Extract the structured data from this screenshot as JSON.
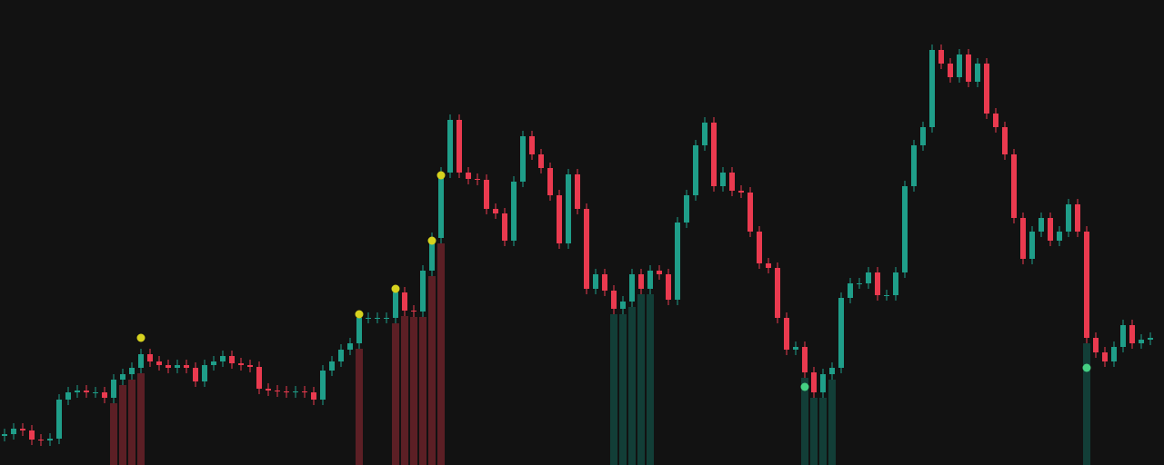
{
  "chart_data": {
    "type": "candlestick",
    "background": "#121212",
    "up_color": "#1f9e89",
    "down_color": "#ea3a4f",
    "ylim": [
      0,
      512
    ],
    "open": [
      32,
      34,
      40,
      38,
      28,
      27,
      29,
      72,
      80,
      82,
      80,
      80,
      74,
      94,
      100,
      107,
      122,
      114,
      110,
      107,
      110,
      107,
      92,
      110,
      114,
      120,
      112,
      110,
      108,
      84,
      82,
      81,
      80,
      81,
      80,
      72,
      104,
      114,
      127,
      134,
      162,
      162,
      162,
      162,
      190,
      170,
      169,
      214,
      250,
      322,
      380,
      322,
      315,
      314,
      282,
      277,
      247,
      312,
      362,
      342,
      327,
      297,
      244,
      320,
      282,
      194,
      210,
      192,
      172,
      180,
      210,
      194,
      214,
      210,
      182,
      267,
      297,
      352,
      377,
      307,
      322,
      302,
      300,
      257,
      222,
      217,
      162,
      127,
      130,
      102,
      80,
      100,
      107,
      184,
      200,
      200,
      212,
      187,
      187,
      212,
      307,
      352,
      372,
      457,
      442,
      427,
      452,
      422,
      442,
      387,
      372,
      342,
      272,
      227,
      257,
      272,
      247,
      257,
      287,
      257,
      140,
      124,
      114,
      130,
      154,
      134,
      138
    ],
    "high": [
      40,
      46,
      46,
      44,
      34,
      35,
      78,
      86,
      88,
      88,
      86,
      86,
      100,
      106,
      113,
      128,
      128,
      120,
      116,
      116,
      116,
      113,
      116,
      120,
      126,
      126,
      118,
      116,
      114,
      90,
      88,
      87,
      87,
      87,
      86,
      110,
      120,
      133,
      140,
      168,
      168,
      168,
      168,
      196,
      196,
      176,
      220,
      256,
      328,
      386,
      386,
      328,
      321,
      320,
      288,
      283,
      318,
      368,
      368,
      348,
      333,
      303,
      326,
      326,
      288,
      216,
      216,
      198,
      186,
      216,
      216,
      220,
      220,
      216,
      273,
      303,
      358,
      383,
      383,
      328,
      328,
      308,
      306,
      263,
      228,
      223,
      168,
      136,
      136,
      108,
      106,
      113,
      190,
      206,
      206,
      218,
      218,
      193,
      218,
      313,
      358,
      378,
      463,
      463,
      448,
      458,
      458,
      448,
      448,
      393,
      378,
      348,
      278,
      263,
      278,
      278,
      263,
      293,
      293,
      263,
      146,
      130,
      136,
      160,
      160,
      144,
      146
    ],
    "low": [
      26,
      28,
      32,
      22,
      21,
      21,
      23,
      66,
      74,
      74,
      74,
      68,
      68,
      88,
      94,
      101,
      108,
      104,
      101,
      101,
      101,
      86,
      86,
      104,
      108,
      106,
      104,
      102,
      78,
      76,
      75,
      74,
      74,
      74,
      66,
      66,
      98,
      108,
      121,
      128,
      156,
      156,
      156,
      156,
      164,
      163,
      163,
      208,
      244,
      316,
      316,
      309,
      308,
      276,
      271,
      241,
      241,
      306,
      336,
      321,
      291,
      238,
      238,
      276,
      188,
      188,
      186,
      166,
      166,
      174,
      188,
      188,
      204,
      176,
      176,
      261,
      291,
      346,
      301,
      301,
      296,
      294,
      251,
      216,
      211,
      156,
      121,
      121,
      96,
      74,
      74,
      94,
      101,
      178,
      194,
      194,
      181,
      181,
      181,
      206,
      301,
      346,
      366,
      436,
      421,
      421,
      416,
      416,
      381,
      366,
      336,
      266,
      221,
      221,
      251,
      241,
      241,
      251,
      251,
      134,
      118,
      108,
      108,
      124,
      128,
      128,
      132
    ],
    "close": [
      34,
      40,
      38,
      28,
      27,
      29,
      72,
      80,
      82,
      80,
      80,
      74,
      94,
      100,
      107,
      122,
      114,
      110,
      107,
      110,
      107,
      92,
      110,
      114,
      120,
      112,
      110,
      108,
      84,
      82,
      81,
      80,
      81,
      80,
      72,
      104,
      114,
      127,
      134,
      162,
      162,
      162,
      162,
      190,
      170,
      169,
      214,
      250,
      322,
      380,
      322,
      315,
      314,
      282,
      277,
      247,
      312,
      362,
      342,
      327,
      297,
      244,
      320,
      282,
      194,
      210,
      192,
      172,
      180,
      210,
      194,
      214,
      210,
      182,
      267,
      297,
      352,
      377,
      307,
      322,
      302,
      300,
      257,
      222,
      217,
      162,
      127,
      130,
      102,
      80,
      100,
      107,
      184,
      200,
      200,
      212,
      187,
      187,
      212,
      307,
      352,
      372,
      457,
      442,
      427,
      452,
      422,
      442,
      387,
      372,
      342,
      272,
      227,
      257,
      272,
      247,
      257,
      287,
      257,
      140,
      124,
      114,
      130,
      154,
      134,
      138,
      140
    ],
    "zones": [
      {
        "color": "#c2313f",
        "indices": [
          12,
          13,
          14,
          15
        ]
      },
      {
        "color": "#c2313f",
        "indices": [
          39
        ]
      },
      {
        "color": "#c2313f",
        "indices": [
          43,
          44,
          45,
          46,
          47,
          48
        ]
      },
      {
        "color": "#147a6a",
        "indices": [
          67,
          68,
          69,
          70,
          71
        ]
      },
      {
        "color": "#147a6a",
        "indices": [
          88,
          89,
          90,
          91
        ]
      },
      {
        "color": "#147a6a",
        "indices": [
          119
        ]
      }
    ],
    "signals": [
      {
        "color": "#d6d21f",
        "index": 15,
        "value": 140
      },
      {
        "color": "#d6d21f",
        "index": 39,
        "value": 166
      },
      {
        "color": "#d6d21f",
        "index": 43,
        "value": 194
      },
      {
        "color": "#d6d21f",
        "index": 47,
        "value": 247
      },
      {
        "color": "#d6d21f",
        "index": 48,
        "value": 319
      },
      {
        "color": "#45d083",
        "index": 88,
        "value": 86
      },
      {
        "color": "#45d083",
        "index": 119,
        "value": 107
      }
    ]
  }
}
